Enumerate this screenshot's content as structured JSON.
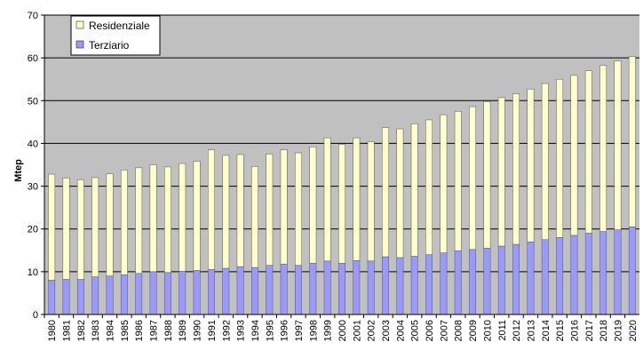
{
  "chart_data": {
    "type": "bar",
    "stacked": true,
    "title": "",
    "xlabel": "",
    "ylabel": "Mtep",
    "ylim": [
      0,
      70
    ],
    "yticks": [
      0,
      10,
      20,
      30,
      40,
      50,
      60,
      70
    ],
    "grid": true,
    "legend_position": "top-left",
    "colors": {
      "plot_background": "#c0c0c0",
      "page_background": "#ffffff",
      "gridline": "#000000",
      "Terziario": "#9999ff",
      "Residenziale": "#ffffcc"
    },
    "categories": [
      "1980",
      "1981",
      "1982",
      "1983",
      "1984",
      "1985",
      "1986",
      "1987",
      "1988",
      "1989",
      "1990",
      "1991",
      "1992",
      "1993",
      "1994",
      "1995",
      "1996",
      "1997",
      "1998",
      "1999",
      "2000",
      "2001",
      "2002",
      "2003",
      "2004",
      "2005",
      "2006",
      "2007",
      "2008",
      "2009",
      "2010",
      "2011",
      "2012",
      "2013",
      "2014",
      "2015",
      "2016",
      "2017",
      "2018",
      "2019",
      "2020"
    ],
    "series": [
      {
        "name": "Terziario",
        "values": [
          8.0,
          8.2,
          8.2,
          8.8,
          9.0,
          9.3,
          9.6,
          10.0,
          9.8,
          10.1,
          10.3,
          10.5,
          10.8,
          11.2,
          11.0,
          11.5,
          11.8,
          11.5,
          12.0,
          12.5,
          12.0,
          12.6,
          12.5,
          13.5,
          13.3,
          13.6,
          14.0,
          14.4,
          14.9,
          15.2,
          15.5,
          16.0,
          16.4,
          17.0,
          17.5,
          18.0,
          18.5,
          19.0,
          19.4,
          19.8,
          20.5
        ]
      },
      {
        "name": "Residenziale",
        "values": [
          24.8,
          23.7,
          23.3,
          23.2,
          23.9,
          24.5,
          24.7,
          25.0,
          24.7,
          25.2,
          25.5,
          28.0,
          26.4,
          26.2,
          23.6,
          26.0,
          26.7,
          26.3,
          27.2,
          28.8,
          27.8,
          28.7,
          27.9,
          30.2,
          30.1,
          31.0,
          31.5,
          32.3,
          32.6,
          33.4,
          34.3,
          34.7,
          35.2,
          35.7,
          36.5,
          37.0,
          37.4,
          38.0,
          38.8,
          39.5,
          39.8
        ]
      }
    ]
  }
}
